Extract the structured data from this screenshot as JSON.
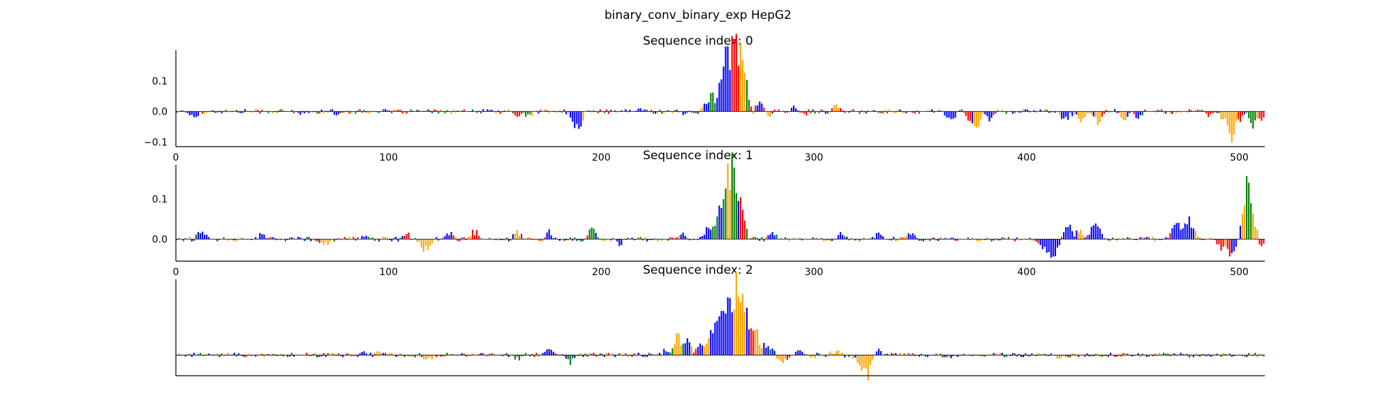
{
  "figure": {
    "title": "binary_conv_binary_exp HepG2"
  },
  "colors": {
    "A": "#008000",
    "C": "#0000ff",
    "G": "#ffa500",
    "T": "#ff0000"
  },
  "chart_data": [
    {
      "type": "sequence-logo",
      "title": "Sequence index: 0",
      "xlim": [
        0,
        512
      ],
      "ylim": [
        -0.115,
        0.2
      ],
      "xticks": [
        0,
        100,
        200,
        300,
        400,
        500
      ],
      "yticks": [
        -0.1,
        0.0,
        0.1
      ],
      "ytick_labels": [
        "−0.1",
        "0.0",
        "0.1"
      ],
      "show_xticks": true,
      "show_yticks": true,
      "peaks": [
        {
          "center": 8,
          "width": 3,
          "amp": -0.02,
          "base": "C"
        },
        {
          "center": 60,
          "width": 3,
          "amp": -0.01,
          "base": "C"
        },
        {
          "center": 75,
          "width": 2,
          "amp": -0.012,
          "base": "C"
        },
        {
          "center": 160,
          "width": 2,
          "amp": -0.018,
          "base": "T"
        },
        {
          "center": 165,
          "width": 2,
          "amp": -0.022,
          "base": "A"
        },
        {
          "center": 188,
          "width": 3,
          "amp": -0.07,
          "base": "C"
        },
        {
          "center": 218,
          "width": 2,
          "amp": 0.012,
          "base": "C"
        },
        {
          "center": 238,
          "width": 3,
          "amp": -0.012,
          "base": "C"
        },
        {
          "center": 250,
          "width": 3,
          "amp": 0.04,
          "base": "C"
        },
        {
          "center": 252,
          "width": 2,
          "amp": 0.05,
          "base": "A"
        },
        {
          "center": 256,
          "width": 2,
          "amp": 0.12,
          "base": "C"
        },
        {
          "center": 258,
          "width": 3,
          "amp": 0.13,
          "base": "C"
        },
        {
          "center": 260,
          "width": 3,
          "amp": 0.15,
          "base": "C"
        },
        {
          "center": 262,
          "width": 2,
          "amp": 0.16,
          "base": "T"
        },
        {
          "center": 264,
          "width": 2,
          "amp": 0.15,
          "base": "T"
        },
        {
          "center": 266,
          "width": 2,
          "amp": 0.19,
          "base": "G"
        },
        {
          "center": 265,
          "width": 2,
          "amp": 0.09,
          "base": "T"
        },
        {
          "center": 268,
          "width": 2,
          "amp": 0.05,
          "base": "A"
        },
        {
          "center": 274,
          "width": 2,
          "amp": 0.04,
          "base": "C"
        },
        {
          "center": 278,
          "width": 2,
          "amp": -0.025,
          "base": "G"
        },
        {
          "center": 290,
          "width": 2,
          "amp": 0.02,
          "base": "C"
        },
        {
          "center": 295,
          "width": 2,
          "amp": -0.012,
          "base": "T"
        },
        {
          "center": 310,
          "width": 2,
          "amp": 0.022,
          "base": "G"
        },
        {
          "center": 364,
          "width": 3,
          "amp": -0.035,
          "base": "C"
        },
        {
          "center": 370,
          "width": 2,
          "amp": 0.012,
          "base": "A"
        },
        {
          "center": 372,
          "width": 2,
          "amp": -0.035,
          "base": "T"
        },
        {
          "center": 376,
          "width": 2,
          "amp": -0.075,
          "base": "G"
        },
        {
          "center": 382,
          "width": 2,
          "amp": -0.035,
          "base": "C"
        },
        {
          "center": 418,
          "width": 3,
          "amp": -0.03,
          "base": "C"
        },
        {
          "center": 425,
          "width": 2,
          "amp": -0.035,
          "base": "G"
        },
        {
          "center": 433,
          "width": 2,
          "amp": -0.055,
          "base": "G"
        },
        {
          "center": 445,
          "width": 2,
          "amp": -0.035,
          "base": "G"
        },
        {
          "center": 452,
          "width": 2,
          "amp": -0.03,
          "base": "C"
        },
        {
          "center": 485,
          "width": 2,
          "amp": -0.02,
          "base": "T"
        },
        {
          "center": 492,
          "width": 2,
          "amp": -0.04,
          "base": "G"
        },
        {
          "center": 496,
          "width": 2,
          "amp": -0.11,
          "base": "G"
        },
        {
          "center": 500,
          "width": 2,
          "amp": -0.035,
          "base": "T"
        },
        {
          "center": 506,
          "width": 2,
          "amp": -0.06,
          "base": "A"
        },
        {
          "center": 510,
          "width": 2,
          "amp": -0.03,
          "base": "T"
        }
      ]
    },
    {
      "type": "sequence-logo",
      "title": "Sequence index: 1",
      "xlim": [
        0,
        512
      ],
      "ylim": [
        -0.055,
        0.185
      ],
      "xticks": [
        0,
        100,
        200,
        300,
        400,
        500
      ],
      "yticks": [
        0.0,
        0.1
      ],
      "ytick_labels": [
        "0.0",
        "0.1"
      ],
      "show_xticks": true,
      "show_yticks": true,
      "peaks": [
        {
          "center": 12,
          "width": 3,
          "amp": 0.02,
          "base": "C"
        },
        {
          "center": 40,
          "width": 3,
          "amp": 0.015,
          "base": "C"
        },
        {
          "center": 70,
          "width": 3,
          "amp": -0.015,
          "base": "G"
        },
        {
          "center": 88,
          "width": 2,
          "amp": 0.015,
          "base": "C"
        },
        {
          "center": 108,
          "width": 2,
          "amp": 0.02,
          "base": "T"
        },
        {
          "center": 117,
          "width": 3,
          "amp": -0.035,
          "base": "G"
        },
        {
          "center": 128,
          "width": 2,
          "amp": 0.02,
          "base": "C"
        },
        {
          "center": 140,
          "width": 2,
          "amp": 0.025,
          "base": "T"
        },
        {
          "center": 160,
          "width": 2,
          "amp": 0.03,
          "base": "G"
        },
        {
          "center": 175,
          "width": 2,
          "amp": 0.025,
          "base": "C"
        },
        {
          "center": 195,
          "width": 2,
          "amp": 0.04,
          "base": "A"
        },
        {
          "center": 208,
          "width": 2,
          "amp": -0.015,
          "base": "C"
        },
        {
          "center": 238,
          "width": 2,
          "amp": 0.02,
          "base": "C"
        },
        {
          "center": 250,
          "width": 2,
          "amp": 0.04,
          "base": "C"
        },
        {
          "center": 254,
          "width": 2,
          "amp": 0.05,
          "base": "A"
        },
        {
          "center": 256,
          "width": 2,
          "amp": 0.065,
          "base": "C"
        },
        {
          "center": 258,
          "width": 2,
          "amp": 0.12,
          "base": "A"
        },
        {
          "center": 260,
          "width": 2,
          "amp": 0.17,
          "base": "G"
        },
        {
          "center": 262,
          "width": 2,
          "amp": 0.18,
          "base": "A"
        },
        {
          "center": 264,
          "width": 2,
          "amp": 0.07,
          "base": "C"
        },
        {
          "center": 266,
          "width": 2,
          "amp": 0.09,
          "base": "T"
        },
        {
          "center": 267,
          "width": 2,
          "amp": -0.012,
          "base": "T"
        },
        {
          "center": 280,
          "width": 2,
          "amp": 0.02,
          "base": "C"
        },
        {
          "center": 312,
          "width": 2,
          "amp": 0.02,
          "base": "C"
        },
        {
          "center": 330,
          "width": 2,
          "amp": 0.025,
          "base": "C"
        },
        {
          "center": 345,
          "width": 2,
          "amp": 0.022,
          "base": "C"
        },
        {
          "center": 408,
          "width": 3,
          "amp": -0.025,
          "base": "C"
        },
        {
          "center": 412,
          "width": 3,
          "amp": -0.055,
          "base": "C"
        },
        {
          "center": 419,
          "width": 3,
          "amp": 0.05,
          "base": "C"
        },
        {
          "center": 425,
          "width": 2,
          "amp": 0.025,
          "base": "G"
        },
        {
          "center": 432,
          "width": 3,
          "amp": 0.045,
          "base": "C"
        },
        {
          "center": 470,
          "width": 3,
          "amp": 0.05,
          "base": "C"
        },
        {
          "center": 476,
          "width": 3,
          "amp": 0.055,
          "base": "C"
        },
        {
          "center": 491,
          "width": 2,
          "amp": -0.03,
          "base": "T"
        },
        {
          "center": 495,
          "width": 2,
          "amp": -0.04,
          "base": "T"
        },
        {
          "center": 497,
          "width": 2,
          "amp": -0.03,
          "base": "C"
        },
        {
          "center": 502,
          "width": 2,
          "amp": 0.12,
          "base": "G"
        },
        {
          "center": 504,
          "width": 2,
          "amp": 0.11,
          "base": "A"
        },
        {
          "center": 506,
          "width": 2,
          "amp": 0.05,
          "base": "G"
        },
        {
          "center": 510,
          "width": 2,
          "amp": -0.025,
          "base": "T"
        }
      ]
    },
    {
      "type": "sequence-logo",
      "title": "Sequence index: 2",
      "xlim": [
        0,
        512
      ],
      "ylim": [
        -0.09,
        0.33
      ],
      "xticks": [],
      "yticks": [],
      "ytick_labels": [],
      "show_xticks": false,
      "show_yticks": false,
      "peaks": [
        {
          "center": 88,
          "width": 3,
          "amp": 0.015,
          "base": "C"
        },
        {
          "center": 95,
          "width": 2,
          "amp": 0.012,
          "base": "G"
        },
        {
          "center": 118,
          "width": 3,
          "amp": -0.02,
          "base": "G"
        },
        {
          "center": 160,
          "width": 2,
          "amp": -0.02,
          "base": "A"
        },
        {
          "center": 175,
          "width": 3,
          "amp": 0.02,
          "base": "C"
        },
        {
          "center": 185,
          "width": 2,
          "amp": -0.035,
          "base": "A"
        },
        {
          "center": 230,
          "width": 2,
          "amp": 0.025,
          "base": "C"
        },
        {
          "center": 234,
          "width": 2,
          "amp": 0.045,
          "base": "A"
        },
        {
          "center": 236,
          "width": 2,
          "amp": 0.08,
          "base": "G"
        },
        {
          "center": 240,
          "width": 2,
          "amp": 0.09,
          "base": "C"
        },
        {
          "center": 246,
          "width": 2,
          "amp": 0.06,
          "base": "C"
        },
        {
          "center": 250,
          "width": 2,
          "amp": 0.06,
          "base": "G"
        },
        {
          "center": 252,
          "width": 2,
          "amp": 0.11,
          "base": "C"
        },
        {
          "center": 255,
          "width": 2,
          "amp": 0.28,
          "base": "C"
        },
        {
          "center": 258,
          "width": 2,
          "amp": 0.18,
          "base": "C"
        },
        {
          "center": 260,
          "width": 2,
          "amp": 0.25,
          "base": "C"
        },
        {
          "center": 262,
          "width": 2,
          "amp": 0.17,
          "base": "G"
        },
        {
          "center": 264,
          "width": 2,
          "amp": 0.31,
          "base": "G"
        },
        {
          "center": 266,
          "width": 2,
          "amp": 0.24,
          "base": "G"
        },
        {
          "center": 268,
          "width": 2,
          "amp": 0.16,
          "base": "C"
        },
        {
          "center": 271,
          "width": 2,
          "amp": 0.12,
          "base": "T"
        },
        {
          "center": 273,
          "width": 2,
          "amp": 0.09,
          "base": "G"
        },
        {
          "center": 277,
          "width": 2,
          "amp": 0.07,
          "base": "C"
        },
        {
          "center": 281,
          "width": 2,
          "amp": 0.03,
          "base": "C"
        },
        {
          "center": 284,
          "width": 3,
          "amp": -0.04,
          "base": "G"
        },
        {
          "center": 292,
          "width": 3,
          "amp": 0.02,
          "base": "C"
        },
        {
          "center": 298,
          "width": 2,
          "amp": -0.02,
          "base": "G"
        },
        {
          "center": 310,
          "width": 3,
          "amp": 0.02,
          "base": "G"
        },
        {
          "center": 322,
          "width": 3,
          "amp": -0.06,
          "base": "G"
        },
        {
          "center": 325,
          "width": 2,
          "amp": -0.09,
          "base": "G"
        },
        {
          "center": 330,
          "width": 2,
          "amp": 0.02,
          "base": "C"
        },
        {
          "center": 365,
          "width": 2,
          "amp": -0.015,
          "base": "C"
        },
        {
          "center": 415,
          "width": 2,
          "amp": -0.012,
          "base": "G"
        },
        {
          "center": 440,
          "width": 2,
          "amp": 0.01,
          "base": "C"
        }
      ]
    }
  ]
}
